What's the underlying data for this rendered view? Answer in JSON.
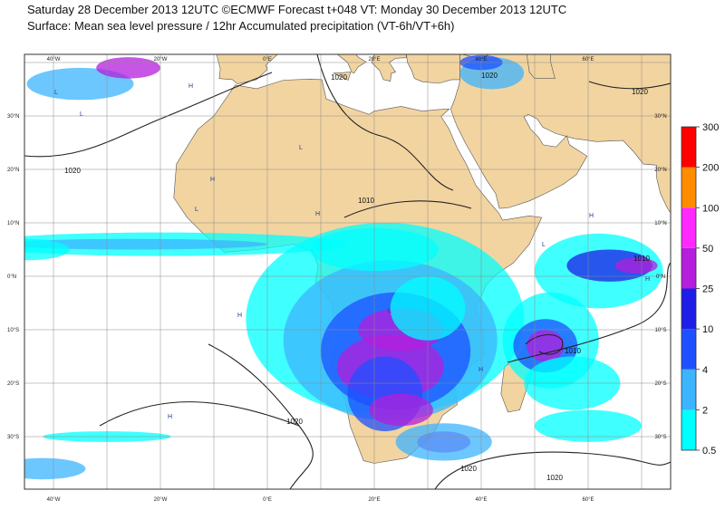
{
  "header": {
    "title": "Saturday 28 December 2013 12UTC ©ECMWF Forecast t+048 VT: Monday 30 December 2013 12UTC",
    "subtitle": "Surface: Mean sea level pressure / 12hr Accumulated precipitation (VT-6h/VT+6h)"
  },
  "map": {
    "lon_labels": [
      "40°W",
      "20°W",
      "0°E",
      "20°E",
      "40°E",
      "60°E"
    ],
    "lat_labels": [
      "30°N",
      "20°N",
      "10°N",
      "0°N",
      "10°S",
      "20°S",
      "30°S"
    ],
    "isobar_labels": [
      "1020",
      "1020",
      "1020",
      "1020",
      "1010",
      "1010",
      "1010",
      "1020",
      "1020",
      "1020"
    ],
    "centers": [
      "L",
      "H",
      "L",
      "H",
      "L",
      "H",
      "L",
      "H",
      "H",
      "L",
      "H",
      "L",
      "H",
      "H"
    ]
  },
  "colorbar": {
    "levels": [
      0.5,
      2,
      4,
      10,
      25,
      50,
      100,
      200,
      300
    ],
    "colors": [
      "#00ffff",
      "#3cb4ff",
      "#1e50ff",
      "#1e1ee6",
      "#b41edc",
      "#ff28ff",
      "#ff8c00",
      "#ff0000"
    ]
  }
}
